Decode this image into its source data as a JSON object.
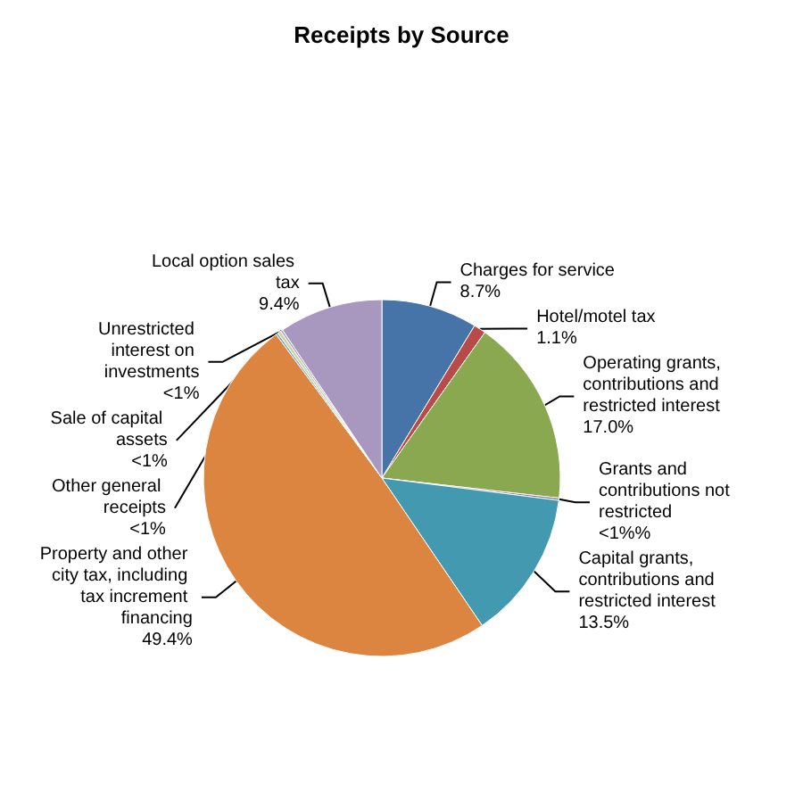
{
  "chart_data": {
    "type": "pie",
    "title": "Receipts by Source",
    "categories": [
      "Charges for service",
      "Hotel/motel tax",
      "Operating grants, contributions and restricted interest",
      "Grants and contributions not restricted",
      "Capital grants, contributions and restricted interest",
      "Property and other city tax, including tax increment financing",
      "Other general receipts",
      "Unrestricted interest on investments",
      "Sale of capital assets",
      "Local option sales tax"
    ],
    "values": [
      8.7,
      1.1,
      17.0,
      0.2,
      13.5,
      49.4,
      0.2,
      0.3,
      0.2,
      9.4
    ],
    "value_labels": [
      "8.7%",
      "1.1%",
      "17.0%",
      "<1%%",
      "13.5%",
      "49.4%",
      "<1%",
      "<1%",
      "<1%",
      "9.4%"
    ],
    "colors": [
      "#4673a8",
      "#b84a48",
      "#8aa84f",
      "#7f6b9e",
      "#4399b0",
      "#dc8540",
      "#8aa0c8",
      "#c8d8a0",
      "#b0a0c8",
      "#a898c0"
    ],
    "legend": false
  }
}
